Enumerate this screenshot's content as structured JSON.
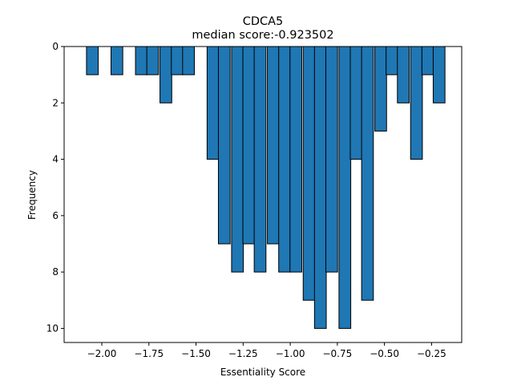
{
  "chart_data": {
    "type": "bar",
    "title": "CDCA5",
    "subtitle": "median score:-0.923502",
    "xlabel": "Essentiality Score",
    "ylabel": "Frequency",
    "xlim": [
      -2.2,
      -0.09
    ],
    "ylim": [
      10.5,
      0
    ],
    "y_inverted": true,
    "grid": false,
    "bar_color": "#1f77b4",
    "edge_color": "#000000",
    "bin_width": 0.0625,
    "x_ticks": [
      {
        "value": -2.0,
        "label": "−2.00"
      },
      {
        "value": -1.75,
        "label": "−1.75"
      },
      {
        "value": -1.5,
        "label": "−1.50"
      },
      {
        "value": -1.25,
        "label": "−1.25"
      },
      {
        "value": -1.0,
        "label": "−1.00"
      },
      {
        "value": -0.75,
        "label": "−0.75"
      },
      {
        "value": -0.5,
        "label": "−0.50"
      },
      {
        "value": -0.25,
        "label": "−0.25"
      }
    ],
    "y_ticks": [
      {
        "value": 0,
        "label": "0"
      },
      {
        "value": 2,
        "label": "2"
      },
      {
        "value": 4,
        "label": "4"
      },
      {
        "value": 6,
        "label": "6"
      },
      {
        "value": 8,
        "label": "8"
      },
      {
        "value": 10,
        "label": "10"
      }
    ],
    "bins": [
      {
        "x": -2.05,
        "value": 1
      },
      {
        "x": -1.92,
        "value": 1
      },
      {
        "x": -1.79,
        "value": 1
      },
      {
        "x": -1.73,
        "value": 1
      },
      {
        "x": -1.66,
        "value": 2
      },
      {
        "x": -1.6,
        "value": 1
      },
      {
        "x": -1.54,
        "value": 1
      },
      {
        "x": -1.41,
        "value": 4
      },
      {
        "x": -1.35,
        "value": 7
      },
      {
        "x": -1.28,
        "value": 8
      },
      {
        "x": -1.22,
        "value": 7
      },
      {
        "x": -1.16,
        "value": 8
      },
      {
        "x": -1.09,
        "value": 7
      },
      {
        "x": -1.03,
        "value": 8
      },
      {
        "x": -0.97,
        "value": 8
      },
      {
        "x": -0.9,
        "value": 9
      },
      {
        "x": -0.84,
        "value": 10
      },
      {
        "x": -0.78,
        "value": 8
      },
      {
        "x": -0.71,
        "value": 10
      },
      {
        "x": -0.65,
        "value": 4
      },
      {
        "x": -0.59,
        "value": 9
      },
      {
        "x": -0.52,
        "value": 3
      },
      {
        "x": -0.46,
        "value": 1
      },
      {
        "x": -0.4,
        "value": 2
      },
      {
        "x": -0.33,
        "value": 4
      },
      {
        "x": -0.27,
        "value": 1
      },
      {
        "x": -0.21,
        "value": 2
      }
    ]
  }
}
